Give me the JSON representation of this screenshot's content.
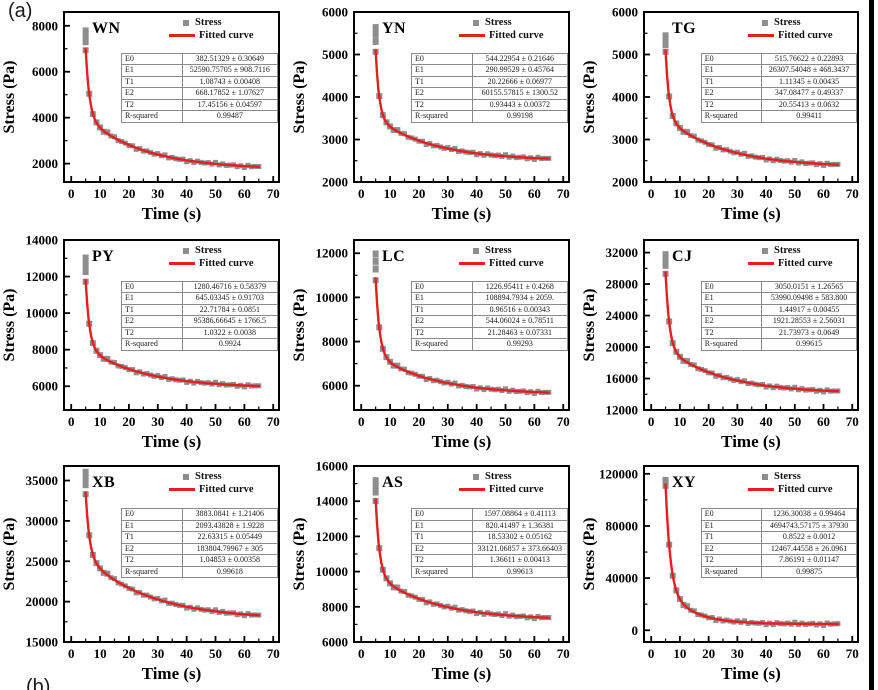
{
  "figure": {
    "panel_label_a": "(a)",
    "panel_label_b": "(b)"
  },
  "colors": {
    "scatter": "#8e8e8e",
    "fitted_line": "#e51f1f",
    "axis": "#000000",
    "table_border": "#8a8a8a"
  },
  "chart_data": {
    "type": "line",
    "xlabel": "Time (s)",
    "ylabel": "Stress (Pa)",
    "x_ticks": [
      0,
      10,
      20,
      30,
      40,
      50,
      60,
      70
    ],
    "xlim": [
      -2.5,
      72
    ],
    "grid": false,
    "legend_position": "top-right",
    "param_keys": [
      "E0",
      "E1",
      "T1",
      "E2",
      "T2",
      "R-squared"
    ],
    "panels": [
      {
        "label": "WN",
        "legend": {
          "stress": "Stress",
          "fitted": "Fitted curve"
        },
        "ylim": [
          1200,
          8600
        ],
        "y_ticks": [
          2000,
          4000,
          6000,
          8000
        ],
        "curve": {
          "start_t": 5,
          "end_t": 65,
          "start": 7000,
          "knee": 4000,
          "end": 1750,
          "tau_fast": 1.3,
          "tau_slow": 20,
          "scatter_top": 7800
        },
        "params": [
          {
            "k": "E0",
            "v": "382.51329 ± 0.30649"
          },
          {
            "k": "E1",
            "v": "52590.75705 ± 908.7116"
          },
          {
            "k": "T1",
            "v": "1.08743 ± 0.00408"
          },
          {
            "k": "E2",
            "v": "668.17852 ± 1.07627"
          },
          {
            "k": "T2",
            "v": "17.45156 ± 0.04597"
          },
          {
            "k": "R-squared",
            "v": "0.99487"
          }
        ]
      },
      {
        "label": "YN",
        "legend": {
          "stress": "Stress",
          "fitted": "Fitted curve"
        },
        "ylim": [
          2000,
          6000
        ],
        "y_ticks": [
          2000,
          3000,
          4000,
          5000,
          6000
        ],
        "curve": {
          "start_t": 5,
          "end_t": 65,
          "start": 5100,
          "knee": 3500,
          "end": 2500,
          "tau_fast": 1.2,
          "tau_slow": 20,
          "scatter_top": 5650
        },
        "params": [
          {
            "k": "E0",
            "v": "544.22954 ± 0.21646"
          },
          {
            "k": "E1",
            "v": "290.99529 ± 0.45764"
          },
          {
            "k": "T1",
            "v": "20.22666 ± 0.06977"
          },
          {
            "k": "E2",
            "v": "60155.57815 ± 1300.52"
          },
          {
            "k": "T2",
            "v": "0.93443 ± 0.00372"
          },
          {
            "k": "R-squared",
            "v": "0.99198"
          }
        ]
      },
      {
        "label": "TG",
        "legend": {
          "stress": "Stress",
          "fitted": "Fitted curve"
        },
        "ylim": [
          2000,
          6000
        ],
        "y_ticks": [
          2000,
          3000,
          4000,
          5000,
          6000
        ],
        "curve": {
          "start_t": 5,
          "end_t": 65,
          "start": 5100,
          "knee": 3500,
          "end": 2350,
          "tau_fast": 1.2,
          "tau_slow": 20,
          "scatter_top": 5450
        },
        "params": [
          {
            "k": "E0",
            "v": "515.76622 ± 0.22893"
          },
          {
            "k": "E1",
            "v": "26307.54048 ± 468.3437"
          },
          {
            "k": "T1",
            "v": "1.11345 ± 0.00435"
          },
          {
            "k": "E2",
            "v": "347.08477 ± 0.49337"
          },
          {
            "k": "T2",
            "v": "20.55413 ± 0.0632"
          },
          {
            "k": "R-squared",
            "v": "0.99411"
          }
        ]
      },
      {
        "label": "PY",
        "legend": {
          "stress": "Stress",
          "fitted": "Fitted curve"
        },
        "ylim": [
          4700,
          14000
        ],
        "y_ticks": [
          6000,
          8000,
          10000,
          12000,
          14000
        ],
        "curve": {
          "start_t": 5,
          "end_t": 65,
          "start": 11800,
          "knee": 8100,
          "end": 5900,
          "tau_fast": 1.3,
          "tau_slow": 20,
          "scatter_top": 13050
        },
        "params": [
          {
            "k": "E0",
            "v": "1280.46716 ± 0.58379"
          },
          {
            "k": "E1",
            "v": "645.03345 ± 0.91703"
          },
          {
            "k": "T1",
            "v": "22.71784 ± 0.0851"
          },
          {
            "k": "E2",
            "v": "95386.66645 ± 1766.5"
          },
          {
            "k": "T2",
            "v": "1.0322 ± 0.0038"
          },
          {
            "k": "R-squared",
            "v": "0.9924"
          }
        ]
      },
      {
        "label": "LC",
        "legend": {
          "stress": "Stress",
          "fitted": "Fitted curve"
        },
        "ylim": [
          4900,
          12600
        ],
        "y_ticks": [
          6000,
          8000,
          10000,
          12000
        ],
        "curve": {
          "start_t": 5,
          "end_t": 65,
          "start": 10850,
          "knee": 7400,
          "end": 5600,
          "tau_fast": 1.3,
          "tau_slow": 20,
          "scatter_top": 12000
        },
        "params": [
          {
            "k": "E0",
            "v": "1226.95411 ± 0.4268"
          },
          {
            "k": "E1",
            "v": "108894.7934 ± 2059."
          },
          {
            "k": "T1",
            "v": "0.96516 ± 0.00343"
          },
          {
            "k": "E2",
            "v": "544.06024 ± 0.78511"
          },
          {
            "k": "T2",
            "v": "21.28463 ± 0.07331"
          },
          {
            "k": "R-squared",
            "v": "0.99293"
          }
        ]
      },
      {
        "label": "CJ",
        "legend": {
          "stress": "Stress",
          "fitted": "Fitted curve"
        },
        "ylim": [
          12000,
          33600
        ],
        "y_ticks": [
          12000,
          16000,
          20000,
          24000,
          28000,
          32000
        ],
        "curve": {
          "start_t": 5,
          "end_t": 65,
          "start": 29500,
          "knee": 19800,
          "end": 14100,
          "tau_fast": 1.3,
          "tau_slow": 20,
          "scatter_top": 31800
        },
        "params": [
          {
            "k": "E0",
            "v": "3050.0151 ± 1.26565"
          },
          {
            "k": "E1",
            "v": "53990.09498 ± 583.800"
          },
          {
            "k": "T1",
            "v": "1.44917 ± 0.00455"
          },
          {
            "k": "E2",
            "v": "1921.28553 ± 2.56031"
          },
          {
            "k": "T2",
            "v": "21.73973 ± 0.0649"
          },
          {
            "k": "R-squared",
            "v": "0.99615"
          }
        ]
      },
      {
        "label": "XB",
        "legend": {
          "stress": "Stress",
          "fitted": "Fitted curve"
        },
        "ylim": [
          15000,
          36800
        ],
        "y_ticks": [
          15000,
          20000,
          25000,
          30000,
          35000
        ],
        "curve": {
          "start_t": 5,
          "end_t": 65,
          "start": 33500,
          "knee": 25500,
          "end": 17800,
          "tau_fast": 1.3,
          "tau_slow": 22,
          "scatter_top": 36100
        },
        "params": [
          {
            "k": "E0",
            "v": "3883.0841 ± 1.21406"
          },
          {
            "k": "E1",
            "v": "2093.43828 ± 1.9228"
          },
          {
            "k": "T1",
            "v": "22.63315 ± 0.05449"
          },
          {
            "k": "E2",
            "v": "183804.79967 ± 305"
          },
          {
            "k": "T2",
            "v": "1.04853 ± 0.00358"
          },
          {
            "k": "R-squared",
            "v": "0.99618"
          }
        ]
      },
      {
        "label": "AS",
        "legend": {
          "stress": "Stress",
          "fitted": "Fitted curve"
        },
        "ylim": [
          6000,
          16000
        ],
        "y_ticks": [
          6000,
          8000,
          10000,
          12000,
          14000,
          16000
        ],
        "curve": {
          "start_t": 5,
          "end_t": 65,
          "start": 14100,
          "knee": 9800,
          "end": 7250,
          "tau_fast": 1.3,
          "tau_slow": 20,
          "scatter_top": 15200
        },
        "params": [
          {
            "k": "E0",
            "v": "1597.08864 ± 0.41113"
          },
          {
            "k": "E1",
            "v": "820.41497 ± 1.36381"
          },
          {
            "k": "T1",
            "v": "18.53302 ± 0.05162"
          },
          {
            "k": "E2",
            "v": "33121.06857 ± 373.66403"
          },
          {
            "k": "T2",
            "v": "1.36611 ± 0.00413"
          },
          {
            "k": "R-squared",
            "v": "0.99613"
          }
        ]
      },
      {
        "label": "XY",
        "legend": {
          "stress": "Sterss",
          "fitted": "Fitted curve"
        },
        "ylim": [
          -9000,
          126000
        ],
        "y_ticks": [
          0,
          40000,
          80000,
          120000
        ],
        "curve": {
          "start_t": 5,
          "end_t": 65,
          "start": 112000,
          "knee": 32000,
          "end": 4800,
          "tau_fast": 1.6,
          "tau_slow": 9,
          "scatter_top": 115000
        },
        "params": [
          {
            "k": "E0",
            "v": "1236.30038 ± 0.99464"
          },
          {
            "k": "E1",
            "v": "4694743.57175 ± 37930"
          },
          {
            "k": "T1",
            "v": "0.8522 ± 0.0012"
          },
          {
            "k": "E2",
            "v": "12467.44558 ± 26.0961"
          },
          {
            "k": "T2",
            "v": "7.86191 ± 0.01147"
          },
          {
            "k": "R-squared",
            "v": "0.99875"
          }
        ]
      }
    ]
  }
}
